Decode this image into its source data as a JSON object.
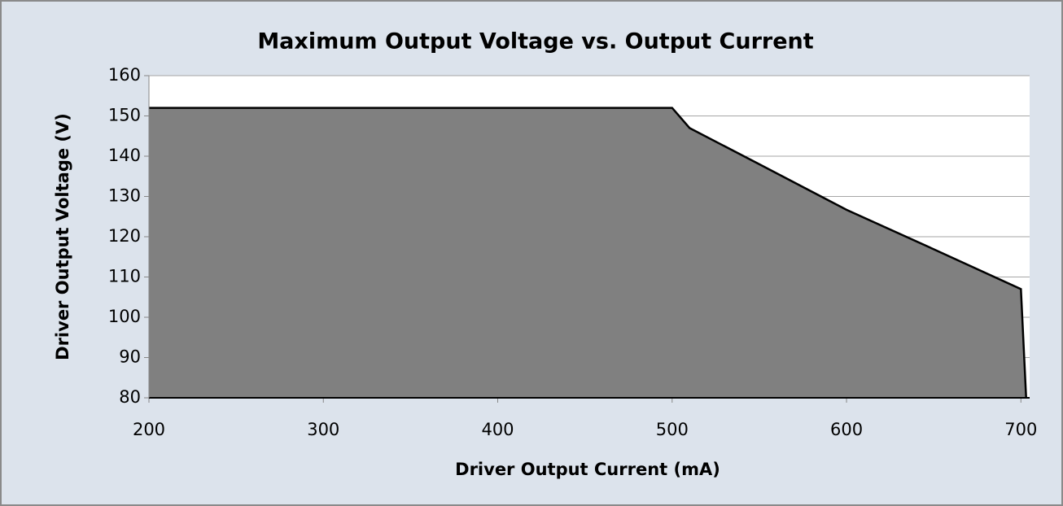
{
  "chart_data": {
    "type": "area",
    "title": "Maximum Output Voltage vs. Output Current",
    "xlabel": "Driver Output Current (mA)",
    "ylabel": "Driver Output Voltage (V)",
    "x": [
      200,
      500,
      510,
      550,
      600,
      650,
      700,
      703
    ],
    "values": [
      152,
      152,
      147,
      138,
      126.7,
      116.9,
      107,
      80
    ],
    "color": "#808080",
    "xlim": [
      200,
      705
    ],
    "xticks": [
      200,
      300,
      400,
      500,
      600,
      700
    ],
    "ylim": [
      80,
      160
    ],
    "yticks": [
      80,
      90,
      100,
      110,
      120,
      130,
      140,
      150,
      160
    ],
    "grid": true
  }
}
